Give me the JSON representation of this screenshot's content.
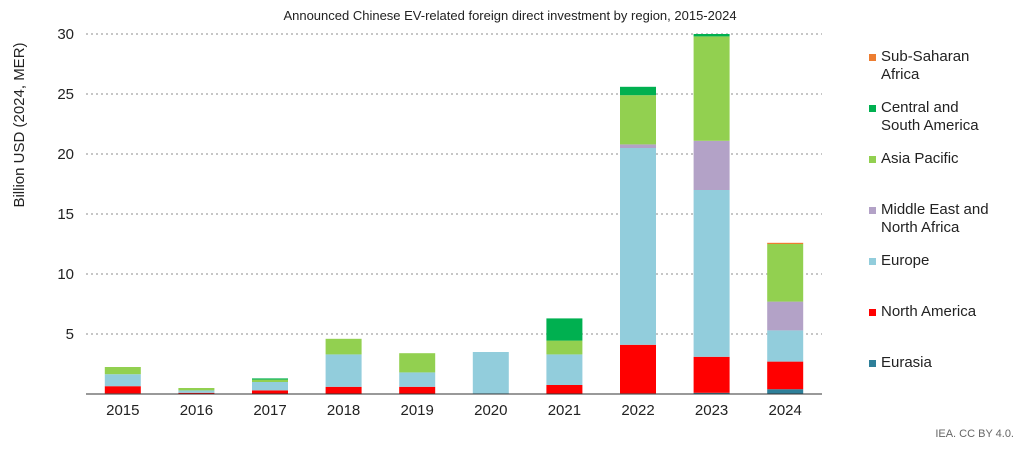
{
  "chart_data": {
    "type": "bar",
    "stacked": true,
    "title": "Announced Chinese EV-related foreign direct investment by region, 2015-2024",
    "ylabel": "Billion USD (2024, MER)",
    "xlabel": "",
    "ylim": [
      0,
      30
    ],
    "yticks": [
      5,
      10,
      15,
      20,
      25,
      30
    ],
    "grid": true,
    "legend_position": "right",
    "categories": [
      "2015",
      "2016",
      "2017",
      "2018",
      "2019",
      "2020",
      "2021",
      "2022",
      "2023",
      "2024"
    ],
    "series": [
      {
        "name": "Eurasia",
        "color": "#2e7f99",
        "values": [
          0.05,
          0.0,
          0.0,
          0.0,
          0.0,
          0.0,
          0.0,
          0.05,
          0.1,
          0.4
        ]
      },
      {
        "name": "North America",
        "color": "#ff0000",
        "values": [
          0.6,
          0.1,
          0.3,
          0.6,
          0.6,
          0.0,
          0.75,
          4.05,
          3.0,
          2.3
        ]
      },
      {
        "name": "Europe",
        "color": "#92cddc",
        "values": [
          1.0,
          0.2,
          0.7,
          2.7,
          1.2,
          3.5,
          2.55,
          16.4,
          13.9,
          2.6
        ]
      },
      {
        "name": "Middle East and North Africa",
        "color": "#b3a2c7",
        "values": [
          0.0,
          0.0,
          0.0,
          0.0,
          0.0,
          0.0,
          0.0,
          0.3,
          4.1,
          2.4
        ]
      },
      {
        "name": "Asia Pacific",
        "color": "#92d050",
        "values": [
          0.6,
          0.2,
          0.2,
          1.3,
          1.6,
          0.0,
          1.15,
          4.1,
          8.7,
          4.8
        ]
      },
      {
        "name": "Central and South America",
        "color": "#00b050",
        "values": [
          0.0,
          0.0,
          0.1,
          0.0,
          0.0,
          0.0,
          1.85,
          0.7,
          0.2,
          0.0
        ]
      },
      {
        "name": "Sub-Saharan Africa",
        "color": "#ed7d31",
        "values": [
          0.0,
          0.0,
          0.0,
          0.0,
          0.0,
          0.0,
          0.0,
          0.0,
          0.0,
          0.1
        ]
      }
    ],
    "legend": [
      "Sub-Saharan\nAfrica",
      "Central and\nSouth America",
      "Asia Pacific",
      "Middle East and\nNorth Africa",
      "Europe",
      "North America",
      "Eurasia"
    ]
  },
  "credit": "IEA. CC BY 4.0."
}
